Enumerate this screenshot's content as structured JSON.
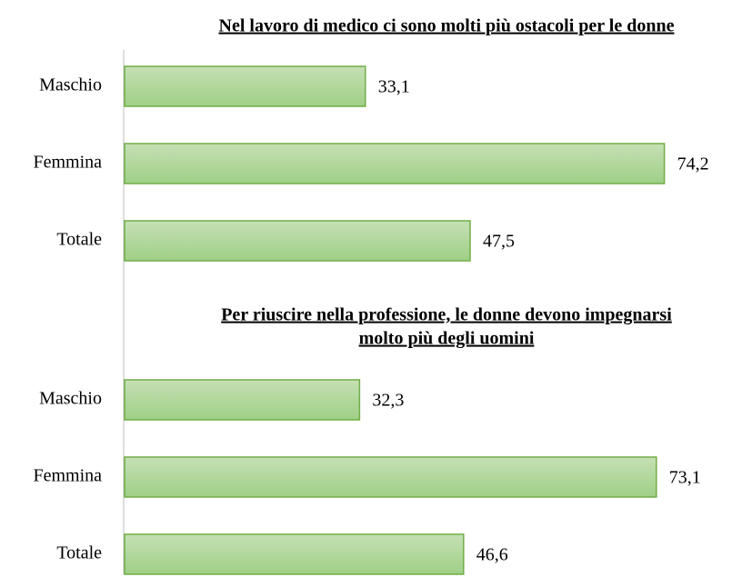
{
  "chart_data": [
    {
      "type": "bar",
      "orientation": "horizontal",
      "title": [
        "Nel lavoro di medico ci sono molti più ostacoli per le donne"
      ],
      "categories": [
        "Maschio",
        "Femmina",
        "Totale"
      ],
      "values": [
        33.1,
        74.2,
        47.5
      ],
      "value_labels": [
        "33,1",
        "74,2",
        "47,5"
      ],
      "color": "#a9d18e",
      "edgecolor": "#70ad47",
      "xlim": [
        0,
        85
      ]
    },
    {
      "type": "bar",
      "orientation": "horizontal",
      "title": [
        "Per riuscire nella professione, le donne devono impegnarsi",
        "molto più degli uomini"
      ],
      "categories": [
        "Maschio",
        "Femmina",
        "Totale"
      ],
      "values": [
        32.3,
        73.1,
        46.6
      ],
      "value_labels": [
        "32,3",
        "73,1",
        "46,6"
      ],
      "color": "#a9d18e",
      "edgecolor": "#70ad47",
      "xlim": [
        0,
        85
      ]
    }
  ]
}
